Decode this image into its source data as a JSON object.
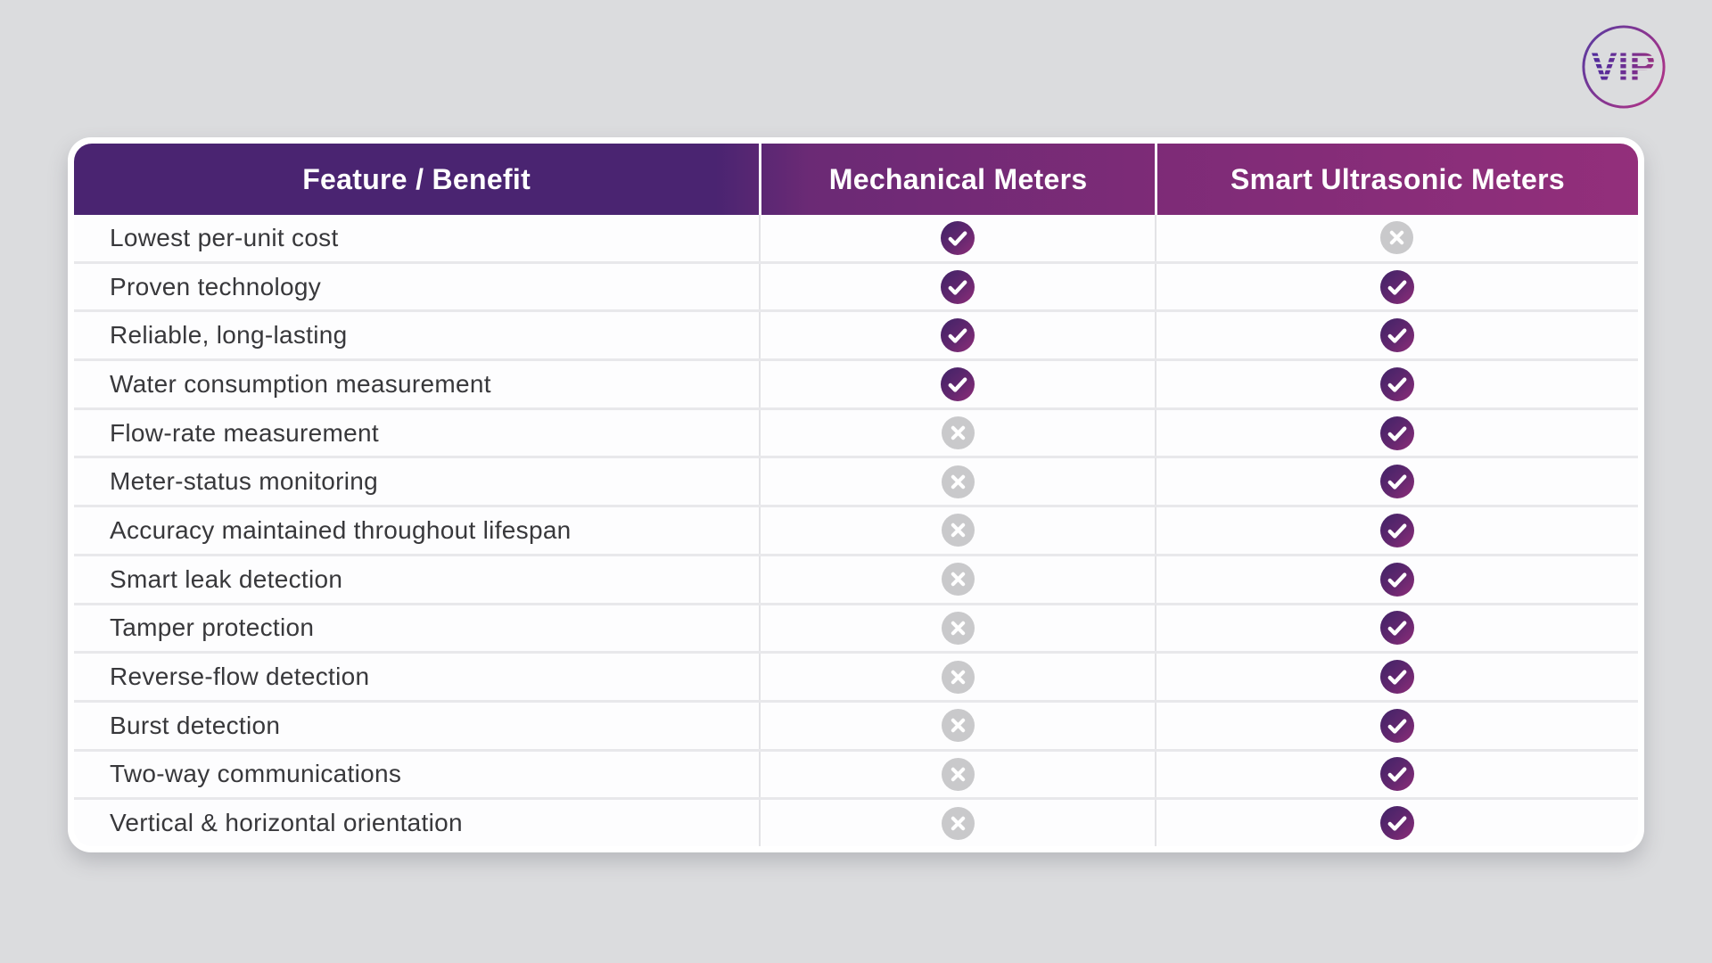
{
  "logo": {
    "text": "VIP"
  },
  "table": {
    "columns": [
      "Feature / Benefit",
      "Mechanical Meters",
      "Smart Ultrasonic Meters"
    ],
    "rows": [
      {
        "feature": "Lowest per-unit cost",
        "mechanical": true,
        "smart": false
      },
      {
        "feature": "Proven technology",
        "mechanical": true,
        "smart": true
      },
      {
        "feature": "Reliable, long-lasting",
        "mechanical": true,
        "smart": true
      },
      {
        "feature": "Water consumption measurement",
        "mechanical": true,
        "smart": true
      },
      {
        "feature": "Flow-rate measurement",
        "mechanical": false,
        "smart": true
      },
      {
        "feature": "Meter-status monitoring",
        "mechanical": false,
        "smart": true
      },
      {
        "feature": "Accuracy maintained throughout lifespan",
        "mechanical": false,
        "smart": true
      },
      {
        "feature": "Smart leak detection",
        "mechanical": false,
        "smart": true
      },
      {
        "feature": "Tamper protection",
        "mechanical": false,
        "smart": true
      },
      {
        "feature": "Reverse-flow detection",
        "mechanical": false,
        "smart": true
      },
      {
        "feature": "Burst detection",
        "mechanical": false,
        "smart": true
      },
      {
        "feature": "Two-way communications",
        "mechanical": false,
        "smart": true
      },
      {
        "feature": "Vertical & horizontal orientation",
        "mechanical": false,
        "smart": true
      }
    ]
  },
  "icons": {
    "check": "✓",
    "cross": "✕"
  },
  "colors": {
    "background": "#dbdcde",
    "header_gradient_left": "#4a2471",
    "header_gradient_right": "#932f7b",
    "check_gradient_start": "#402367",
    "check_gradient_end": "#8e2d78",
    "cross_gray": "#c9c9cb",
    "row_divider": "#e8e8eb",
    "body_text": "#38383b",
    "header_text": "#ffffff",
    "logo_gradient_left": "#5e3a9e",
    "logo_gradient_right": "#b03487"
  }
}
